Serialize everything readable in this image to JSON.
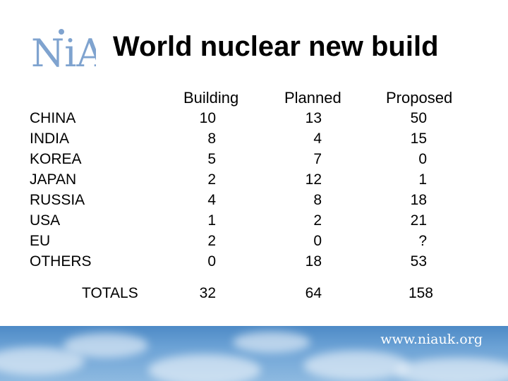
{
  "logo_text": "NiA",
  "title": "World nuclear new build",
  "columns": [
    "Building",
    "Planned",
    "Proposed"
  ],
  "rows": [
    {
      "label": "CHINA",
      "building": "10",
      "planned": "13",
      "proposed": "50"
    },
    {
      "label": "INDIA",
      "building": "8",
      "planned": "4",
      "proposed": "15"
    },
    {
      "label": "KOREA",
      "building": "5",
      "planned": "7",
      "proposed": "0"
    },
    {
      "label": "JAPAN",
      "building": "2",
      "planned": "12",
      "proposed": "1"
    },
    {
      "label": "RUSSIA",
      "building": "4",
      "planned": "8",
      "proposed": "18"
    },
    {
      "label": "USA",
      "building": "1",
      "planned": "2",
      "proposed": "21"
    },
    {
      "label": "EU",
      "building": "2",
      "planned": "0",
      "proposed": "?"
    },
    {
      "label": "OTHERS",
      "building": "0",
      "planned": "18",
      "proposed": "53"
    }
  ],
  "totals": {
    "label": "TOTALS",
    "building": "32",
    "planned": "64",
    "proposed": "158"
  },
  "footer_url": "www.niauk.org",
  "colors": {
    "logo": "#7fa3cf",
    "sky": "#6da3d6"
  }
}
